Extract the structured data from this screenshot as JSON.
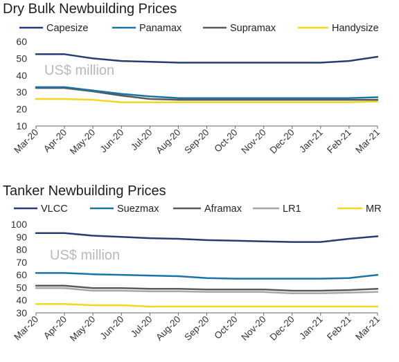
{
  "chart_data": [
    {
      "type": "line",
      "title": "Dry Bulk Newbuilding Prices",
      "annotation": "US$ million",
      "xlabel": "",
      "ylabel": "",
      "ylim": [
        10,
        60
      ],
      "yticks": [
        10,
        20,
        30,
        40,
        50,
        60
      ],
      "x": [
        "Mar-20",
        "Apr-20",
        "May-20",
        "Jun-20",
        "Jul-20",
        "Aug-20",
        "Sep-20",
        "Oct-20",
        "Nov-20",
        "Dec-20",
        "Jan-21",
        "Feb-21",
        "Mar-21"
      ],
      "grid": false,
      "legend": "top",
      "series": [
        {
          "name": "Capesize",
          "color": "#253d73",
          "values": [
            52.5,
            52.5,
            50.0,
            48.5,
            48.0,
            47.5,
            47.5,
            47.5,
            47.5,
            47.5,
            47.5,
            48.5,
            51.0
          ]
        },
        {
          "name": "Panamax",
          "color": "#1a73a5",
          "values": [
            33.0,
            33.0,
            31.0,
            29.0,
            27.5,
            26.5,
            26.5,
            26.5,
            26.5,
            26.5,
            26.5,
            26.5,
            27.0
          ]
        },
        {
          "name": "Supramax",
          "color": "#595959",
          "values": [
            32.5,
            32.5,
            30.5,
            28.0,
            26.0,
            25.5,
            25.5,
            25.5,
            25.5,
            25.5,
            25.5,
            25.5,
            25.5
          ]
        },
        {
          "name": "Handysize",
          "color": "#f4d61e",
          "values": [
            26.0,
            26.0,
            25.5,
            24.0,
            24.0,
            24.0,
            24.0,
            24.0,
            24.0,
            24.0,
            24.0,
            24.0,
            24.5
          ]
        }
      ]
    },
    {
      "type": "line",
      "title": "Tanker Newbuilding Prices",
      "annotation": "US$ million",
      "xlabel": "",
      "ylabel": "",
      "ylim": [
        30,
        100
      ],
      "yticks": [
        30,
        40,
        50,
        60,
        70,
        80,
        90,
        100
      ],
      "x": [
        "Mar-20",
        "Apr-20",
        "May-20",
        "Jun-20",
        "Jul-20",
        "Aug-20",
        "Sep-20",
        "Oct-20",
        "Nov-20",
        "Dec-20",
        "Jan-21",
        "Feb-21",
        "Mar-21"
      ],
      "grid": false,
      "legend": "top",
      "series": [
        {
          "name": "VLCC",
          "color": "#253d73",
          "values": [
            93.0,
            93.0,
            91.0,
            90.0,
            89.0,
            88.5,
            87.5,
            87.0,
            86.5,
            86.0,
            86.0,
            88.5,
            90.5
          ]
        },
        {
          "name": "Suezmax",
          "color": "#1a73a5",
          "values": [
            61.5,
            61.5,
            60.5,
            60.0,
            59.5,
            59.0,
            57.5,
            57.0,
            57.0,
            57.0,
            57.0,
            57.5,
            60.0
          ]
        },
        {
          "name": "Aframax",
          "color": "#595959",
          "values": [
            51.5,
            51.5,
            49.5,
            49.5,
            49.0,
            49.0,
            48.5,
            48.5,
            48.5,
            47.5,
            47.5,
            48.0,
            49.0
          ]
        },
        {
          "name": "LR1",
          "color": "#a6a6a6",
          "values": [
            49.5,
            49.5,
            47.5,
            47.5,
            47.0,
            47.0,
            46.5,
            46.5,
            46.5,
            45.5,
            45.5,
            46.0,
            46.5
          ]
        },
        {
          "name": "MR",
          "color": "#f4d61e",
          "values": [
            37.0,
            37.0,
            36.0,
            36.0,
            35.0,
            35.0,
            35.0,
            35.0,
            35.0,
            35.0,
            35.0,
            35.0,
            35.0
          ]
        }
      ]
    }
  ]
}
